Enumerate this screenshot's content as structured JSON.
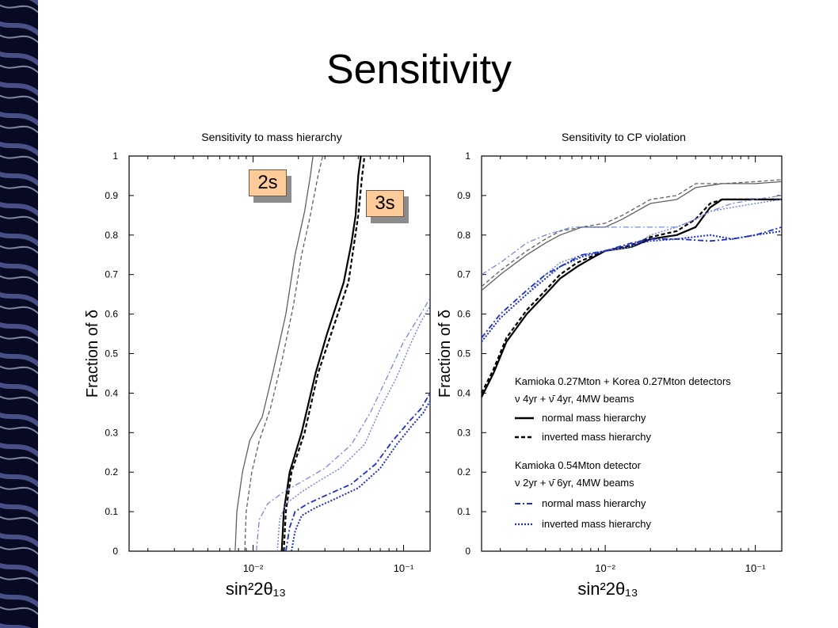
{
  "slide": {
    "title": "Sensitivity"
  },
  "colors": {
    "black": "#000000",
    "gray": "#606060",
    "blue": "#1a2fcc",
    "lightblue": "#6b7ee0",
    "callout": "#ffcc99"
  },
  "callouts": {
    "two_sigma": "2s",
    "three_sigma": "3s"
  },
  "chart_data": [
    {
      "type": "line",
      "title": "Sensitivity to mass hierarchy",
      "xlabel": "sin²2θ₁₃",
      "ylabel": "Fraction of δ",
      "xscale": "log",
      "xlim": [
        0.0015,
        0.15
      ],
      "ylim": [
        0,
        1
      ],
      "yticks": [
        "0",
        "0.1",
        "0.2",
        "0.3",
        "0.4",
        "0.5",
        "0.6",
        "0.7",
        "0.8",
        "0.9",
        "1"
      ],
      "xticks": [
        {
          "label": "10⁻²",
          "value": 0.01
        },
        {
          "label": "10⁻¹",
          "value": 0.1
        }
      ],
      "series": [
        {
          "color": "gray",
          "style": "solid",
          "width": 1.3,
          "points": [
            [
              0.0076,
              0
            ],
            [
              0.0078,
              0.1
            ],
            [
              0.0085,
              0.2
            ],
            [
              0.0095,
              0.28
            ],
            [
              0.0115,
              0.34
            ],
            [
              0.0135,
              0.45
            ],
            [
              0.0165,
              0.6
            ],
            [
              0.019,
              0.75
            ],
            [
              0.022,
              0.86
            ],
            [
              0.024,
              0.95
            ],
            [
              0.025,
              1
            ]
          ]
        },
        {
          "color": "gray",
          "style": "dashed",
          "width": 1.3,
          "points": [
            [
              0.0088,
              0
            ],
            [
              0.009,
              0.1
            ],
            [
              0.0098,
              0.2
            ],
            [
              0.011,
              0.28
            ],
            [
              0.013,
              0.36
            ],
            [
              0.0155,
              0.48
            ],
            [
              0.0185,
              0.62
            ],
            [
              0.021,
              0.75
            ],
            [
              0.024,
              0.85
            ],
            [
              0.027,
              0.95
            ],
            [
              0.029,
              1
            ]
          ]
        },
        {
          "color": "black",
          "style": "solid",
          "width": 2.2,
          "points": [
            [
              0.0155,
              0
            ],
            [
              0.016,
              0.1
            ],
            [
              0.0175,
              0.2
            ],
            [
              0.021,
              0.3
            ],
            [
              0.026,
              0.45
            ],
            [
              0.031,
              0.55
            ],
            [
              0.04,
              0.68
            ],
            [
              0.045,
              0.78
            ],
            [
              0.048,
              0.85
            ],
            [
              0.05,
              0.95
            ],
            [
              0.052,
              1
            ]
          ]
        },
        {
          "color": "black",
          "style": "dashed",
          "width": 2.2,
          "points": [
            [
              0.016,
              0
            ],
            [
              0.0165,
              0.1
            ],
            [
              0.018,
              0.2
            ],
            [
              0.022,
              0.3
            ],
            [
              0.027,
              0.45
            ],
            [
              0.033,
              0.55
            ],
            [
              0.043,
              0.68
            ],
            [
              0.047,
              0.78
            ],
            [
              0.05,
              0.85
            ],
            [
              0.053,
              0.95
            ],
            [
              0.055,
              1
            ]
          ]
        },
        {
          "color": "lightblue",
          "style": "dashdot",
          "width": 1.2,
          "points": [
            [
              0.0105,
              0
            ],
            [
              0.011,
              0.08
            ],
            [
              0.0125,
              0.12
            ],
            [
              0.016,
              0.15
            ],
            [
              0.022,
              0.18
            ],
            [
              0.03,
              0.21
            ],
            [
              0.045,
              0.27
            ],
            [
              0.06,
              0.35
            ],
            [
              0.08,
              0.45
            ],
            [
              0.1,
              0.53
            ],
            [
              0.13,
              0.6
            ],
            [
              0.15,
              0.64
            ]
          ]
        },
        {
          "color": "lightblue",
          "style": "dotted",
          "width": 1.4,
          "points": [
            [
              0.0145,
              0
            ],
            [
              0.015,
              0.08
            ],
            [
              0.0165,
              0.12
            ],
            [
              0.021,
              0.15
            ],
            [
              0.028,
              0.18
            ],
            [
              0.038,
              0.21
            ],
            [
              0.055,
              0.27
            ],
            [
              0.07,
              0.36
            ],
            [
              0.09,
              0.44
            ],
            [
              0.11,
              0.52
            ],
            [
              0.13,
              0.58
            ],
            [
              0.15,
              0.62
            ]
          ]
        },
        {
          "color": "blue",
          "style": "dashdot",
          "width": 1.8,
          "points": [
            [
              0.0165,
              0
            ],
            [
              0.0175,
              0.06
            ],
            [
              0.019,
              0.1
            ],
            [
              0.023,
              0.12
            ],
            [
              0.03,
              0.14
            ],
            [
              0.045,
              0.17
            ],
            [
              0.065,
              0.22
            ],
            [
              0.085,
              0.28
            ],
            [
              0.11,
              0.33
            ],
            [
              0.13,
              0.36
            ],
            [
              0.15,
              0.4
            ]
          ]
        },
        {
          "color": "blue",
          "style": "dotted",
          "width": 2.0,
          "points": [
            [
              0.018,
              0
            ],
            [
              0.019,
              0.05
            ],
            [
              0.021,
              0.09
            ],
            [
              0.026,
              0.11
            ],
            [
              0.034,
              0.13
            ],
            [
              0.05,
              0.16
            ],
            [
              0.07,
              0.21
            ],
            [
              0.09,
              0.27
            ],
            [
              0.115,
              0.32
            ],
            [
              0.135,
              0.35
            ],
            [
              0.15,
              0.38
            ]
          ]
        }
      ]
    },
    {
      "type": "line",
      "title": "Sensitivity to CP violation",
      "xlabel": "sin²2θ₁₃",
      "ylabel": "Fraction of δ",
      "xscale": "log",
      "xlim": [
        0.0015,
        0.15
      ],
      "ylim": [
        0,
        1
      ],
      "yticks": [
        "0",
        "0.1",
        "0.2",
        "0.3",
        "0.4",
        "0.5",
        "0.6",
        "0.7",
        "0.8",
        "0.9",
        "1"
      ],
      "xticks": [
        {
          "label": "10⁻²",
          "value": 0.01
        },
        {
          "label": "10⁻¹",
          "value": 0.1
        }
      ],
      "legend": {
        "group1_title": "Kamioka 0.27Mton + Korea 0.27Mton detectors",
        "group1_sub": "ν 4yr + ν̄ 4yr, 4MW beams",
        "group1_items": [
          "normal mass hierarchy",
          "inverted mass hierarchy"
        ],
        "group2_title": "Kamioka 0.54Mton detector",
        "group2_sub": "ν 2yr + ν̄ 6yr, 4MW beams",
        "group2_items": [
          "normal mass hierarchy",
          "inverted mass hierarchy"
        ]
      },
      "series": [
        {
          "color": "gray",
          "style": "solid",
          "width": 1.3,
          "points": [
            [
              0.0015,
              0.66
            ],
            [
              0.002,
              0.7
            ],
            [
              0.003,
              0.75
            ],
            [
              0.004,
              0.78
            ],
            [
              0.005,
              0.8
            ],
            [
              0.007,
              0.82
            ],
            [
              0.01,
              0.82
            ],
            [
              0.013,
              0.84
            ],
            [
              0.02,
              0.88
            ],
            [
              0.03,
              0.89
            ],
            [
              0.04,
              0.92
            ],
            [
              0.06,
              0.93
            ],
            [
              0.1,
              0.93
            ],
            [
              0.15,
              0.935
            ]
          ]
        },
        {
          "color": "gray",
          "style": "dashed",
          "width": 1.3,
          "points": [
            [
              0.0015,
              0.67
            ],
            [
              0.002,
              0.71
            ],
            [
              0.003,
              0.76
            ],
            [
              0.004,
              0.79
            ],
            [
              0.005,
              0.81
            ],
            [
              0.007,
              0.82
            ],
            [
              0.01,
              0.83
            ],
            [
              0.013,
              0.85
            ],
            [
              0.02,
              0.89
            ],
            [
              0.03,
              0.9
            ],
            [
              0.04,
              0.93
            ],
            [
              0.06,
              0.93
            ],
            [
              0.1,
              0.935
            ],
            [
              0.15,
              0.94
            ]
          ]
        },
        {
          "color": "black",
          "style": "solid",
          "width": 2.2,
          "points": [
            [
              0.0015,
              0.39
            ],
            [
              0.0018,
              0.45
            ],
            [
              0.0022,
              0.53
            ],
            [
              0.003,
              0.6
            ],
            [
              0.004,
              0.65
            ],
            [
              0.005,
              0.69
            ],
            [
              0.0065,
              0.72
            ],
            [
              0.008,
              0.74
            ],
            [
              0.01,
              0.76
            ],
            [
              0.015,
              0.77
            ],
            [
              0.02,
              0.79
            ],
            [
              0.03,
              0.8
            ],
            [
              0.04,
              0.82
            ],
            [
              0.05,
              0.87
            ],
            [
              0.06,
              0.89
            ],
            [
              0.1,
              0.89
            ],
            [
              0.15,
              0.89
            ]
          ]
        },
        {
          "color": "black",
          "style": "dashed",
          "width": 2.2,
          "points": [
            [
              0.0015,
              0.4
            ],
            [
              0.0018,
              0.46
            ],
            [
              0.0022,
              0.54
            ],
            [
              0.003,
              0.61
            ],
            [
              0.004,
              0.66
            ],
            [
              0.005,
              0.7
            ],
            [
              0.0065,
              0.73
            ],
            [
              0.008,
              0.745
            ],
            [
              0.01,
              0.76
            ],
            [
              0.015,
              0.775
            ],
            [
              0.02,
              0.795
            ],
            [
              0.03,
              0.81
            ],
            [
              0.04,
              0.84
            ],
            [
              0.05,
              0.88
            ],
            [
              0.06,
              0.89
            ],
            [
              0.1,
              0.89
            ],
            [
              0.15,
              0.89
            ]
          ]
        },
        {
          "color": "lightblue",
          "style": "dashdot",
          "width": 1.2,
          "points": [
            [
              0.0015,
              0.7
            ],
            [
              0.002,
              0.73
            ],
            [
              0.003,
              0.78
            ],
            [
              0.004,
              0.8
            ],
            [
              0.006,
              0.82
            ],
            [
              0.01,
              0.82
            ],
            [
              0.015,
              0.82
            ],
            [
              0.02,
              0.82
            ],
            [
              0.03,
              0.82
            ],
            [
              0.04,
              0.84
            ],
            [
              0.05,
              0.86
            ],
            [
              0.07,
              0.88
            ],
            [
              0.1,
              0.89
            ],
            [
              0.15,
              0.9
            ]
          ]
        },
        {
          "color": "lightblue",
          "style": "dotted",
          "width": 1.4,
          "points": [
            [
              0.0015,
              0.53
            ],
            [
              0.002,
              0.59
            ],
            [
              0.003,
              0.65
            ],
            [
              0.004,
              0.7
            ],
            [
              0.005,
              0.73
            ],
            [
              0.007,
              0.75
            ],
            [
              0.01,
              0.76
            ],
            [
              0.015,
              0.77
            ],
            [
              0.02,
              0.8
            ],
            [
              0.03,
              0.82
            ],
            [
              0.04,
              0.84
            ],
            [
              0.05,
              0.86
            ],
            [
              0.07,
              0.87
            ],
            [
              0.1,
              0.88
            ],
            [
              0.15,
              0.89
            ]
          ]
        },
        {
          "color": "blue",
          "style": "dashdot",
          "width": 1.8,
          "points": [
            [
              0.0015,
              0.54
            ],
            [
              0.002,
              0.6
            ],
            [
              0.003,
              0.66
            ],
            [
              0.004,
              0.7
            ],
            [
              0.005,
              0.72
            ],
            [
              0.007,
              0.75
            ],
            [
              0.01,
              0.76
            ],
            [
              0.015,
              0.78
            ],
            [
              0.02,
              0.79
            ],
            [
              0.03,
              0.79
            ],
            [
              0.05,
              0.785
            ],
            [
              0.07,
              0.79
            ],
            [
              0.1,
              0.8
            ],
            [
              0.15,
              0.82
            ]
          ]
        },
        {
          "color": "blue",
          "style": "dotted",
          "width": 2.0,
          "points": [
            [
              0.0015,
              0.53
            ],
            [
              0.002,
              0.59
            ],
            [
              0.003,
              0.65
            ],
            [
              0.004,
              0.69
            ],
            [
              0.005,
              0.72
            ],
            [
              0.007,
              0.745
            ],
            [
              0.01,
              0.76
            ],
            [
              0.015,
              0.775
            ],
            [
              0.02,
              0.785
            ],
            [
              0.03,
              0.79
            ],
            [
              0.05,
              0.8
            ],
            [
              0.07,
              0.79
            ],
            [
              0.1,
              0.8
            ],
            [
              0.15,
              0.81
            ]
          ]
        }
      ]
    }
  ]
}
